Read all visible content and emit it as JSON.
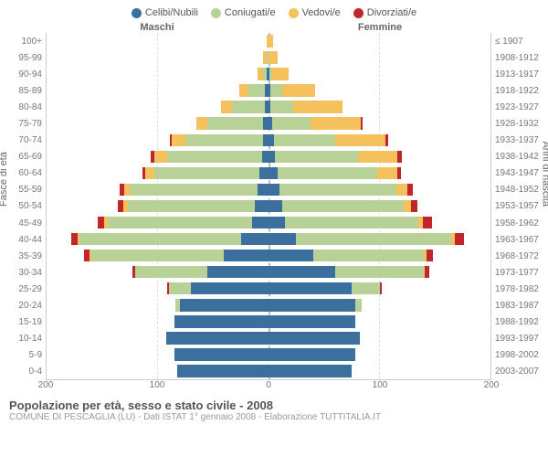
{
  "legend": [
    {
      "label": "Celibi/Nubili",
      "color": "#3b6f9e"
    },
    {
      "label": "Coniugati/e",
      "color": "#b8d197"
    },
    {
      "label": "Vedovi/e",
      "color": "#f4c15d"
    },
    {
      "label": "Divorziati/e",
      "color": "#c0272d"
    }
  ],
  "header_left": "Maschi",
  "header_right": "Femmine",
  "y_label_left": "Fasce di età",
  "y_label_right": "Anni di nascita",
  "age_labels": [
    "100+",
    "95-99",
    "90-94",
    "85-89",
    "80-84",
    "75-79",
    "70-74",
    "65-69",
    "60-64",
    "55-59",
    "50-54",
    "45-49",
    "40-44",
    "35-39",
    "30-34",
    "25-29",
    "20-24",
    "15-19",
    "10-14",
    "5-9",
    "0-4"
  ],
  "birth_labels": [
    "≤ 1907",
    "1908-1912",
    "1913-1917",
    "1918-1922",
    "1923-1927",
    "1928-1932",
    "1933-1937",
    "1938-1942",
    "1943-1947",
    "1948-1952",
    "1953-1957",
    "1958-1962",
    "1963-1967",
    "1968-1972",
    "1973-1977",
    "1978-1982",
    "1983-1987",
    "1988-1992",
    "1993-1997",
    "1998-2002",
    "2003-2007"
  ],
  "x_max": 200,
  "x_ticks": [
    200,
    100,
    0,
    100,
    200
  ],
  "rows": [
    {
      "m": [
        0,
        0,
        2,
        0
      ],
      "f": [
        0,
        0,
        4,
        0
      ]
    },
    {
      "m": [
        0,
        2,
        3,
        0
      ],
      "f": [
        0,
        0,
        8,
        0
      ]
    },
    {
      "m": [
        2,
        3,
        5,
        0
      ],
      "f": [
        1,
        2,
        15,
        0
      ]
    },
    {
      "m": [
        3,
        15,
        8,
        0
      ],
      "f": [
        2,
        10,
        30,
        0
      ]
    },
    {
      "m": [
        3,
        30,
        10,
        0
      ],
      "f": [
        2,
        20,
        45,
        0
      ]
    },
    {
      "m": [
        5,
        50,
        10,
        0
      ],
      "f": [
        3,
        35,
        45,
        2
      ]
    },
    {
      "m": [
        5,
        70,
        12,
        2
      ],
      "f": [
        5,
        55,
        45,
        3
      ]
    },
    {
      "m": [
        6,
        85,
        12,
        3
      ],
      "f": [
        6,
        75,
        35,
        4
      ]
    },
    {
      "m": [
        8,
        95,
        8,
        3
      ],
      "f": [
        8,
        90,
        18,
        3
      ]
    },
    {
      "m": [
        10,
        115,
        5,
        4
      ],
      "f": [
        10,
        105,
        10,
        5
      ]
    },
    {
      "m": [
        12,
        115,
        4,
        5
      ],
      "f": [
        12,
        110,
        6,
        6
      ]
    },
    {
      "m": [
        15,
        130,
        3,
        6
      ],
      "f": [
        15,
        120,
        4,
        8
      ]
    },
    {
      "m": [
        25,
        145,
        2,
        6
      ],
      "f": [
        25,
        140,
        3,
        8
      ]
    },
    {
      "m": [
        40,
        120,
        1,
        5
      ],
      "f": [
        40,
        100,
        2,
        6
      ]
    },
    {
      "m": [
        55,
        65,
        0,
        3
      ],
      "f": [
        60,
        80,
        1,
        4
      ]
    },
    {
      "m": [
        70,
        20,
        0,
        1
      ],
      "f": [
        75,
        25,
        0,
        2
      ]
    },
    {
      "m": [
        80,
        4,
        0,
        0
      ],
      "f": [
        78,
        6,
        0,
        0
      ]
    },
    {
      "m": [
        85,
        0,
        0,
        0
      ],
      "f": [
        78,
        0,
        0,
        0
      ]
    },
    {
      "m": [
        92,
        0,
        0,
        0
      ],
      "f": [
        82,
        0,
        0,
        0
      ]
    },
    {
      "m": [
        85,
        0,
        0,
        0
      ],
      "f": [
        78,
        0,
        0,
        0
      ]
    },
    {
      "m": [
        82,
        0,
        0,
        0
      ],
      "f": [
        75,
        0,
        0,
        0
      ]
    }
  ],
  "title": "Popolazione per età, sesso e stato civile - 2008",
  "subtitle": "COMUNE DI PESCAGLIA (LU) - Dati ISTAT 1° gennaio 2008 - Elaborazione TUTTITALIA.IT",
  "colors": [
    "#3b6f9e",
    "#b8d197",
    "#f4c15d",
    "#c0272d"
  ]
}
